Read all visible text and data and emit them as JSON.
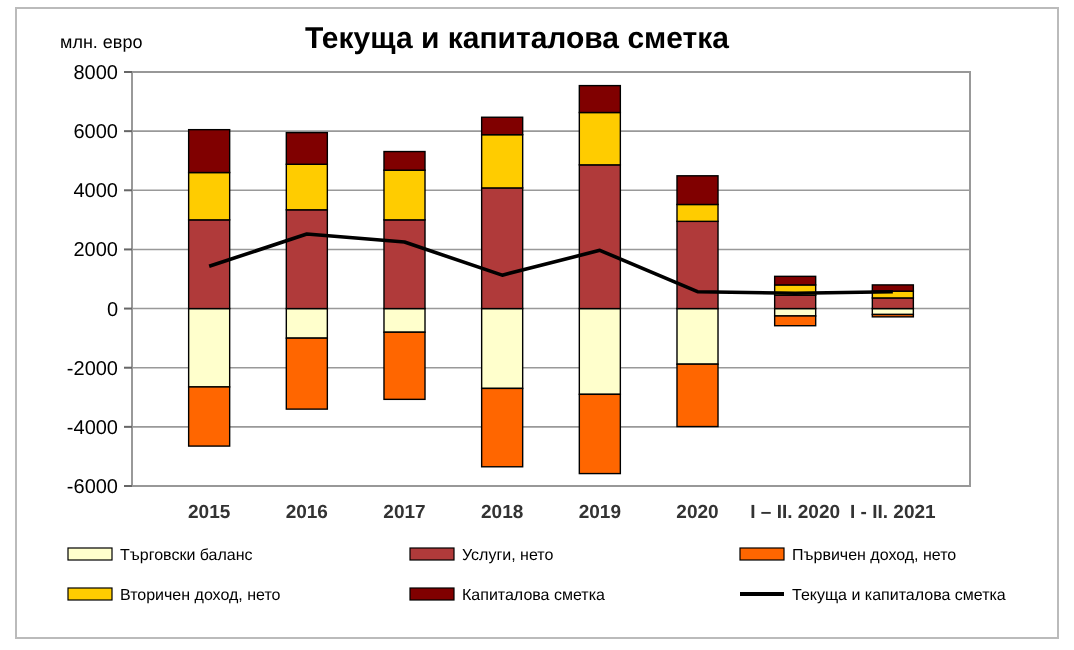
{
  "chart_data": {
    "type": "bar",
    "stacked": true,
    "title": "Текуща и капиталова сметка",
    "ylabel": "млн. евро",
    "categories": [
      "2015",
      "2016",
      "2017",
      "2018",
      "2019",
      "2020",
      "I – II. 2020",
      "I - II. 2021"
    ],
    "ylim": [
      -6000,
      8000
    ],
    "yticks": [
      -6000,
      -4000,
      -2000,
      0,
      2000,
      4000,
      6000,
      8000
    ],
    "grid": "y",
    "legend": "bottom",
    "series": [
      {
        "name": "Търговски баланс",
        "color": "#ffffcc",
        "values": [
          -2650,
          -1000,
          -800,
          -2700,
          -2900,
          -1880,
          -250,
          -200
        ]
      },
      {
        "name": "Услуги, нето",
        "color": "#b03a3a",
        "values": [
          3000,
          3340,
          3000,
          4080,
          4860,
          2950,
          450,
          360
        ]
      },
      {
        "name": "Първичен доход, нето",
        "color": "#ff6600",
        "values": [
          -2000,
          -2400,
          -2270,
          -2650,
          -2680,
          -2110,
          -330,
          -80
        ]
      },
      {
        "name": "Вторичен доход, нето",
        "color": "#ffcc00",
        "values": [
          1600,
          1540,
          1680,
          1800,
          1770,
          570,
          350,
          230
        ]
      },
      {
        "name": "Капиталова сметка",
        "color": "#800000",
        "values": [
          1450,
          1070,
          630,
          590,
          910,
          970,
          290,
          210
        ]
      },
      {
        "name": "Текуща и капиталова сметка",
        "type": "line",
        "color": "#000000",
        "values": [
          1430,
          2520,
          2250,
          1130,
          1970,
          570,
          520,
          570
        ]
      }
    ]
  }
}
